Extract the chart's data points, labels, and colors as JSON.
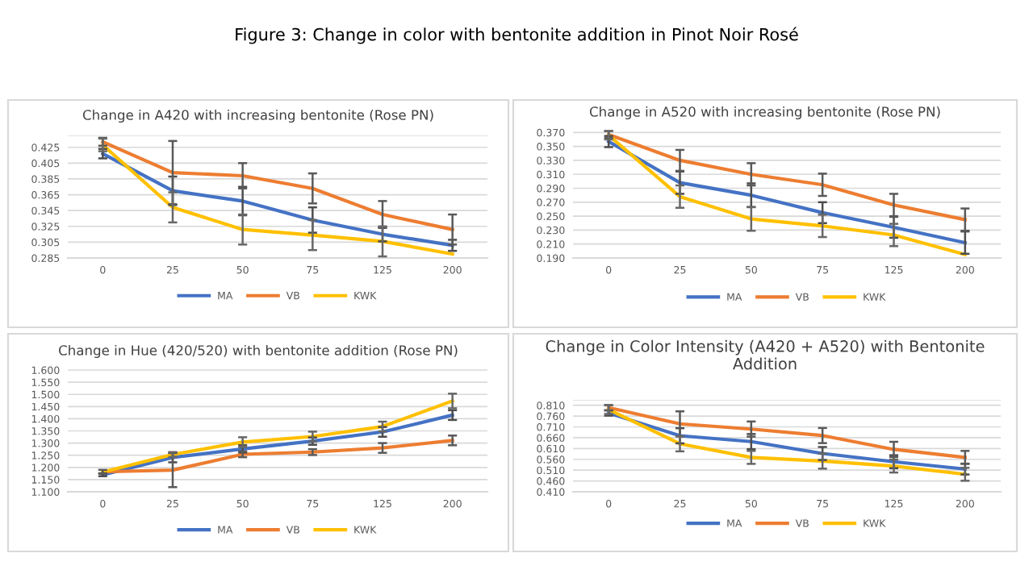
{
  "chart_data": [
    {
      "type": "line",
      "title": "Change in A420 with increasing bentonite (Rose PN)",
      "annotations": [
        "Figure 3: Change in color with bentonite addition in Pinot Noir Rosé"
      ],
      "categories": [
        "0",
        "25",
        "50",
        "75",
        "125",
        "200"
      ],
      "series": [
        {
          "name": "MA",
          "color": "#4472c4",
          "values": [
            0.417,
            0.37,
            0.357,
            0.333,
            0.315,
            0.301
          ],
          "errors": [
            0.006,
            0.018,
            0.018,
            0.016,
            0.009,
            0.007
          ]
        },
        {
          "name": "VB",
          "color": "#ed7d31",
          "values": [
            0.432,
            0.393,
            0.389,
            0.373,
            0.34,
            0.321
          ],
          "errors": [
            0.005,
            0.04,
            0.016,
            0.019,
            0.017,
            0.019
          ]
        },
        {
          "name": "KWK",
          "color": "#ffc000",
          "values": [
            0.428,
            0.349,
            0.321,
            0.314,
            0.306,
            0.29
          ],
          "errors": [
            0.008,
            0.019,
            0.019,
            0.019,
            0.019,
            null
          ]
        }
      ],
      "ylim": [
        0.285,
        0.44
      ],
      "yticks": [
        {
          "value": 0.44,
          "label": null
        },
        0.285,
        0.305,
        0.325,
        0.345,
        0.365,
        0.385,
        0.405,
        0.425
      ],
      "grid": "y",
      "legend": "bottom"
    },
    {
      "type": "line",
      "title": "Change in A520 with increasing bentonite (Rose PN)",
      "categories": [
        "0",
        "25",
        "50",
        "75",
        "125",
        "200"
      ],
      "series": [
        {
          "name": "MA",
          "color": "#4472c4",
          "values": [
            0.357,
            0.298,
            0.28,
            0.255,
            0.234,
            0.212
          ],
          "errors": [
            0.008,
            0.016,
            0.017,
            0.015,
            0.015,
            0.016
          ]
        },
        {
          "name": "VB",
          "color": "#ed7d31",
          "values": [
            0.367,
            0.33,
            0.31,
            0.295,
            0.266,
            0.245
          ],
          "errors": [
            0.005,
            0.015,
            0.016,
            0.016,
            0.016,
            0.016
          ]
        },
        {
          "name": "KWK",
          "color": "#ffc000",
          "values": [
            0.366,
            0.278,
            0.246,
            0.236,
            0.223,
            0.195
          ],
          "errors": [
            0.006,
            0.016,
            0.017,
            0.016,
            0.016,
            null
          ]
        }
      ],
      "ylim": [
        0.19,
        0.375
      ],
      "yticks": [
        {
          "value": 0.19,
          "label": "0.190"
        },
        {
          "value": 0.21,
          "label": "0.210"
        },
        {
          "value": 0.23,
          "label": "0.230"
        },
        {
          "value": 0.25,
          "label": "0.250"
        },
        {
          "value": 0.27,
          "label": "0.270"
        },
        {
          "value": 0.29,
          "label": "0.290"
        },
        {
          "value": 0.31,
          "label": "0.310"
        },
        {
          "value": 0.33,
          "label": "0.330"
        },
        {
          "value": 0.35,
          "label": "0.350"
        },
        {
          "value": 0.37,
          "label": "0.370"
        }
      ],
      "grid": "y",
      "legend": "bottom"
    },
    {
      "type": "line",
      "title": "Change in Hue (420/520) with bentonite addition (Rose PN)",
      "categories": [
        "0",
        "25",
        "50",
        "75",
        "125",
        "200"
      ],
      "series": [
        {
          "name": "MA",
          "color": "#4472c4",
          "values": [
            1.17,
            1.241,
            1.276,
            1.308,
            1.346,
            1.415
          ],
          "errors": [
            0.006,
            0.02,
            0.015,
            0.015,
            0.02,
            0.02
          ]
        },
        {
          "name": "VB",
          "color": "#ed7d31",
          "values": [
            1.182,
            1.189,
            1.254,
            1.263,
            1.28,
            1.311
          ],
          "errors": [
            0.008,
            0.07,
            0.012,
            0.012,
            0.02,
            0.02
          ]
        },
        {
          "name": "KWK",
          "color": "#ffc000",
          "values": [
            1.181,
            1.253,
            1.304,
            1.327,
            1.368,
            1.473
          ],
          "errors": [
            null,
            0.01,
            0.02,
            0.02,
            0.02,
            0.03
          ]
        }
      ],
      "ylim": [
        1.1,
        1.61
      ],
      "yticks": [
        {
          "value": 1.1,
          "label": "1.100"
        },
        {
          "value": 1.15,
          "label": "1.150"
        },
        {
          "value": 1.2,
          "label": "1.200"
        },
        {
          "value": 1.25,
          "label": "1.250"
        },
        {
          "value": 1.3,
          "label": "1.300"
        },
        {
          "value": 1.35,
          "label": "1.350"
        },
        {
          "value": 1.4,
          "label": "1.400"
        },
        {
          "value": 1.45,
          "label": "1.450"
        },
        {
          "value": 1.5,
          "label": "1.500"
        },
        {
          "value": 1.55,
          "label": "1.550"
        },
        {
          "value": 1.6,
          "label": "1.600"
        }
      ],
      "grid": "y",
      "legend": "bottom"
    },
    {
      "type": "line",
      "title": "Change in Color Intensity (A420 + A520) with Bentonite\nAddition",
      "categories": [
        "0",
        "25",
        "50",
        "75",
        "125",
        "200"
      ],
      "series": [
        {
          "name": "MA",
          "color": "#4472c4",
          "values": [
            0.774,
            0.669,
            0.642,
            0.587,
            0.549,
            0.515
          ],
          "errors": [
            0.012,
            0.035,
            0.035,
            0.03,
            0.03,
            0.025
          ]
        },
        {
          "name": "VB",
          "color": "#ed7d31",
          "values": [
            0.799,
            0.724,
            0.7,
            0.67,
            0.606,
            0.569
          ],
          "errors": [
            0.012,
            0.058,
            0.035,
            0.035,
            0.035,
            0.03
          ]
        },
        {
          "name": "KWK",
          "color": "#ffc000",
          "values": [
            0.79,
            0.632,
            0.569,
            0.552,
            0.529,
            0.491
          ],
          "errors": [
            0.02,
            0.035,
            0.03,
            0.035,
            0.03,
            0.03
          ]
        }
      ],
      "ylim": [
        0.41,
        0.835
      ],
      "yticks": [
        {
          "value": 0.835,
          "label": null
        },
        {
          "value": 0.41,
          "label": "0.410"
        },
        {
          "value": 0.46,
          "label": "0.460"
        },
        {
          "value": 0.51,
          "label": "0.510"
        },
        {
          "value": 0.56,
          "label": "0.560"
        },
        {
          "value": 0.61,
          "label": "0.610"
        },
        {
          "value": 0.66,
          "label": "0.660"
        },
        {
          "value": 0.71,
          "label": "0.710"
        },
        {
          "value": 0.76,
          "label": "0.760"
        },
        {
          "value": 0.81,
          "label": "0.810"
        }
      ],
      "grid": "y",
      "legend": "bottom"
    }
  ]
}
